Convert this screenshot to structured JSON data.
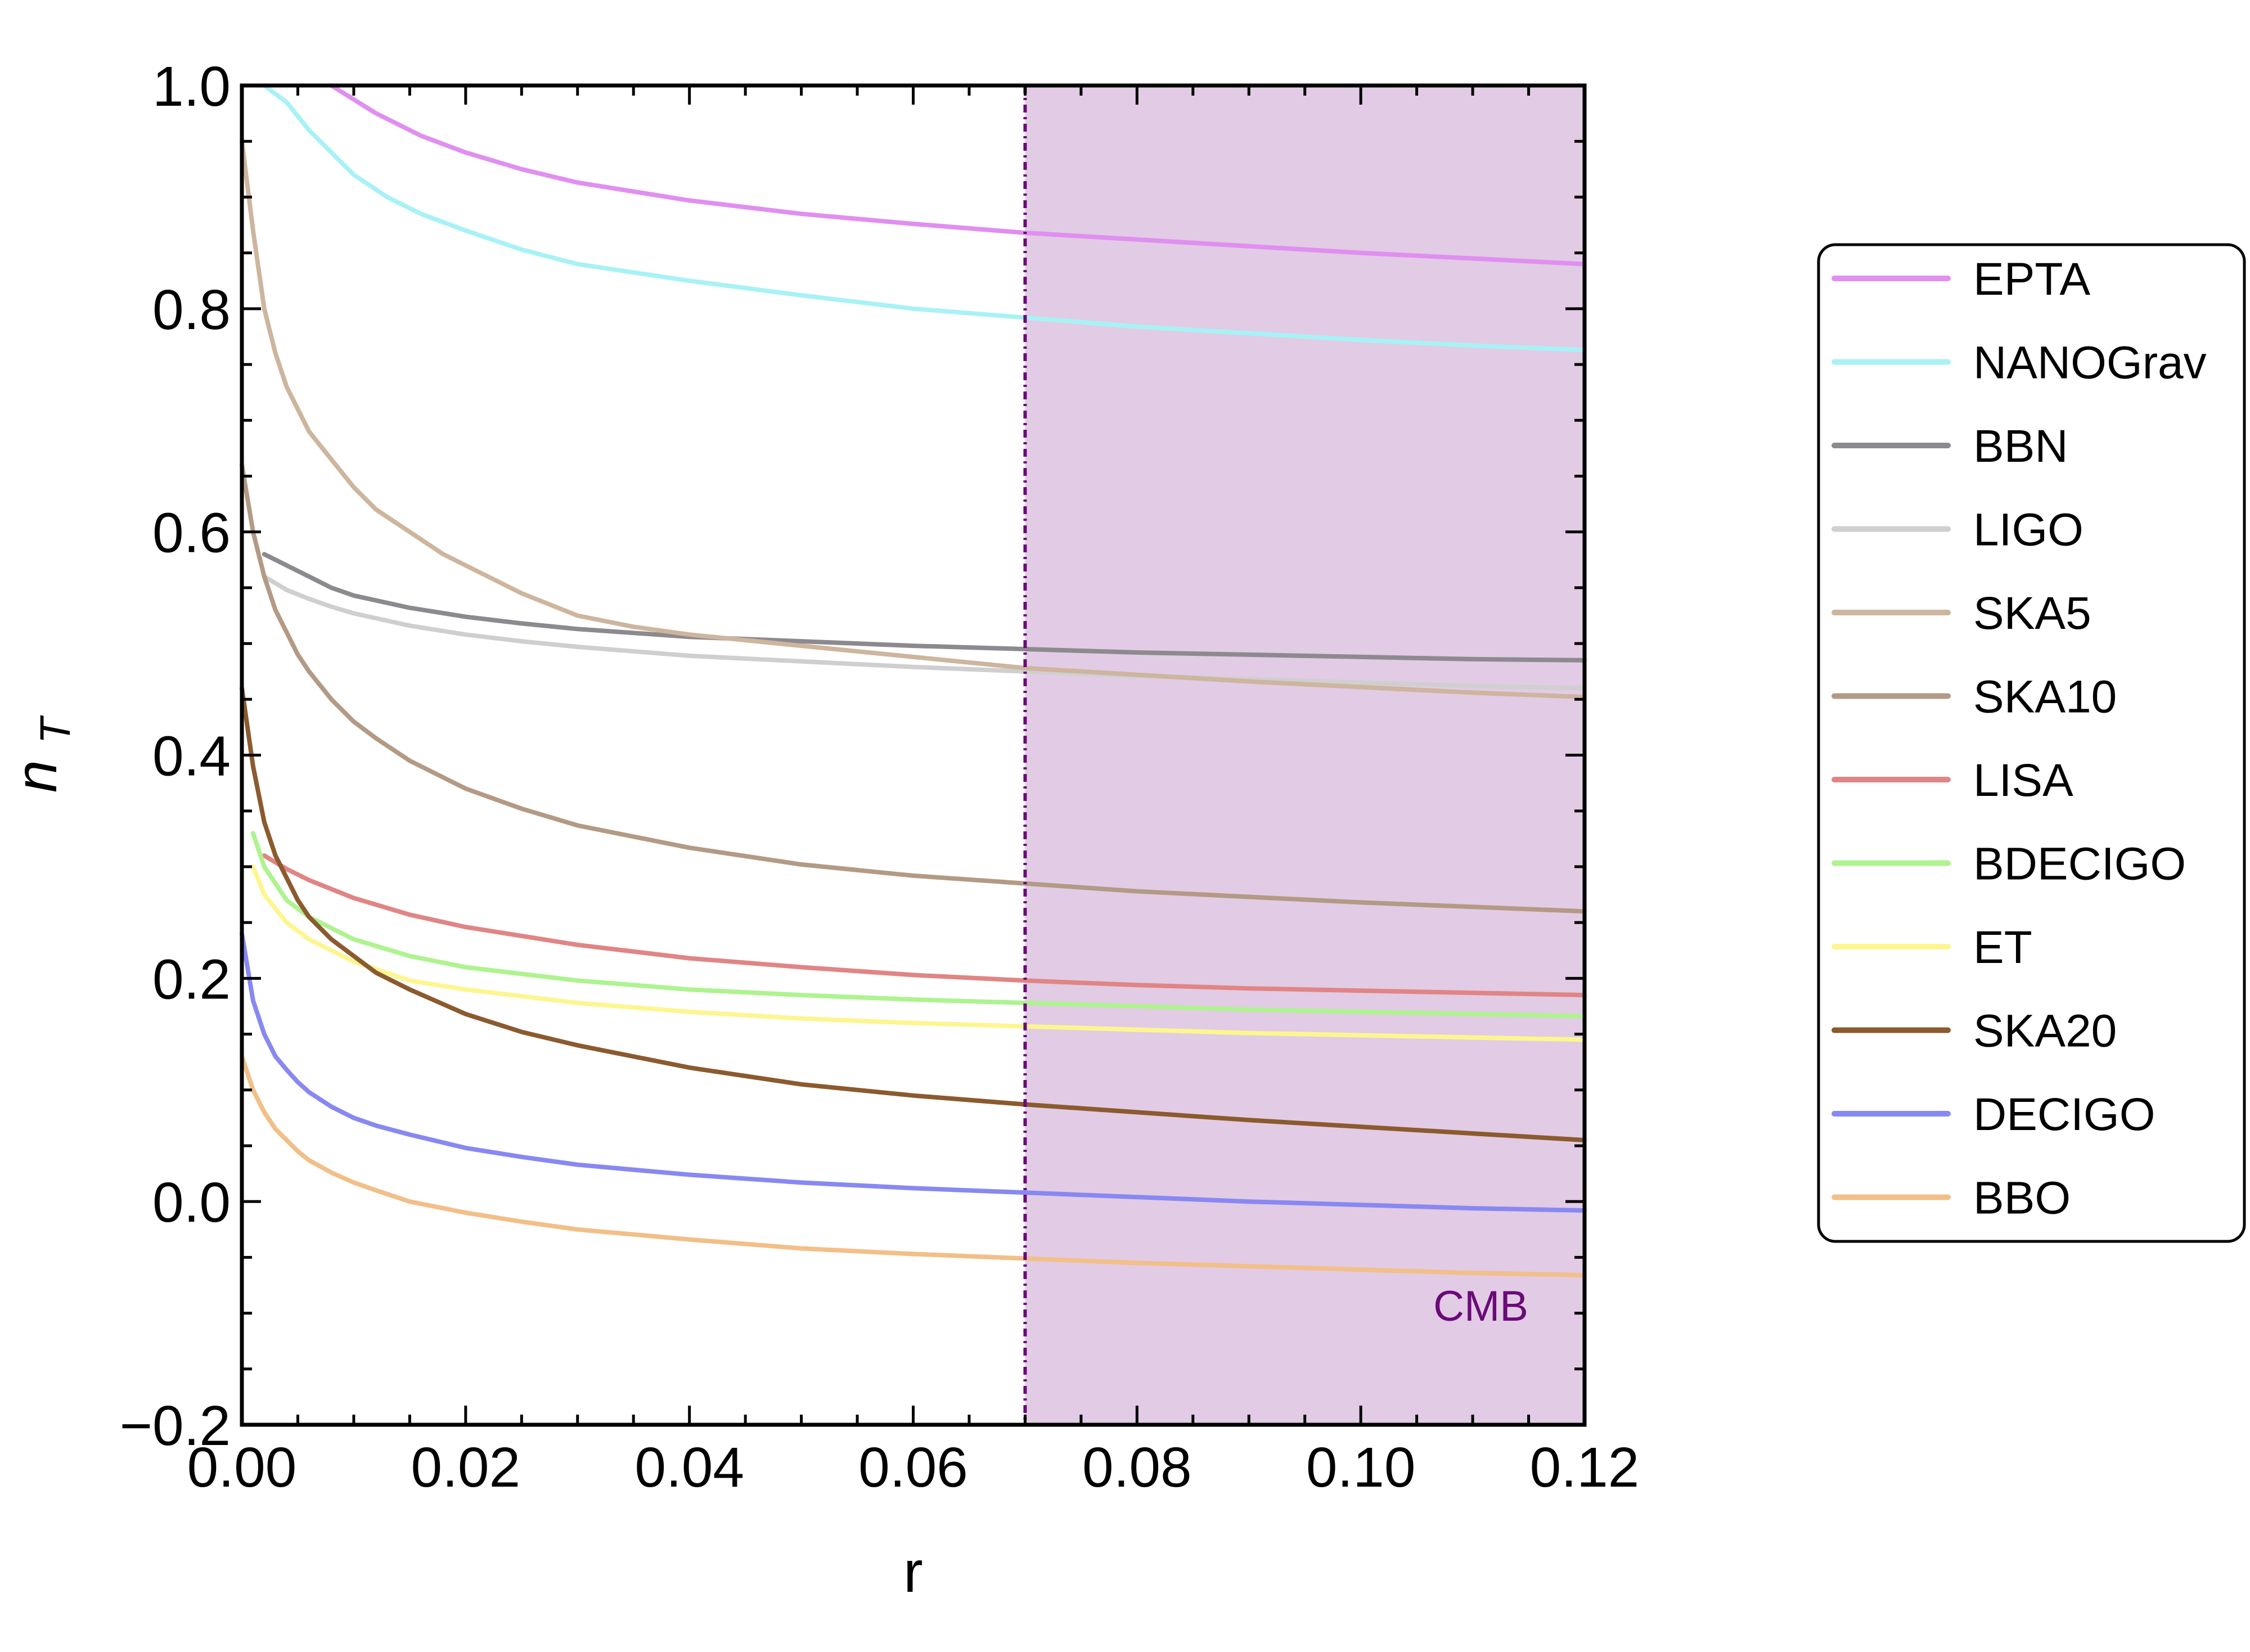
{
  "chart_data": {
    "type": "line",
    "title": "",
    "xlabel": "r",
    "ylabel": "n",
    "ylabel_sub": "T",
    "xlim": [
      0.0,
      0.12
    ],
    "ylim": [
      -0.2,
      1.0
    ],
    "xticks": [
      0.0,
      0.02,
      0.04,
      0.06,
      0.08,
      0.1,
      0.12
    ],
    "xtick_labels": [
      "0.00",
      "0.02",
      "0.04",
      "0.06",
      "0.08",
      "0.10",
      "0.12"
    ],
    "yticks": [
      -0.2,
      0.0,
      0.2,
      0.4,
      0.6,
      0.8,
      1.0
    ],
    "ytick_labels": [
      "−0.2",
      "0.0",
      "0.2",
      "0.4",
      "0.6",
      "0.8",
      "1.0"
    ],
    "grid": false,
    "legend_position": "right",
    "shaded_region": {
      "label": "CMB",
      "x_start": 0.07,
      "x_end": 0.12,
      "color": "#e2cbe4",
      "boundary_color": "#6a0a78",
      "label_color": "#6a0a78"
    },
    "series": [
      {
        "name": "EPTA",
        "color": "#e08ff0",
        "x": [
          0.008,
          0.012,
          0.016,
          0.02,
          0.025,
          0.03,
          0.04,
          0.05,
          0.06,
          0.07,
          0.08,
          0.09,
          0.1,
          0.11,
          0.12
        ],
        "y": [
          1.0,
          0.975,
          0.955,
          0.94,
          0.925,
          0.913,
          0.897,
          0.885,
          0.876,
          0.868,
          0.862,
          0.856,
          0.85,
          0.845,
          0.84
        ]
      },
      {
        "name": "NANOGrav",
        "color": "#a8f2f6",
        "x": [
          0.002,
          0.004,
          0.006,
          0.008,
          0.01,
          0.013,
          0.016,
          0.02,
          0.025,
          0.03,
          0.04,
          0.05,
          0.06,
          0.07,
          0.08,
          0.09,
          0.1,
          0.11,
          0.12
        ],
        "y": [
          1.0,
          0.985,
          0.96,
          0.94,
          0.92,
          0.9,
          0.885,
          0.87,
          0.853,
          0.84,
          0.825,
          0.812,
          0.8,
          0.792,
          0.784,
          0.778,
          0.772,
          0.767,
          0.763
        ]
      },
      {
        "name": "BBN",
        "color": "#8c8a8e",
        "x": [
          0.002,
          0.004,
          0.006,
          0.008,
          0.01,
          0.015,
          0.02,
          0.025,
          0.03,
          0.04,
          0.05,
          0.06,
          0.07,
          0.08,
          0.09,
          0.1,
          0.11,
          0.12
        ],
        "y": [
          0.58,
          0.57,
          0.56,
          0.55,
          0.543,
          0.532,
          0.524,
          0.518,
          0.513,
          0.506,
          0.502,
          0.498,
          0.495,
          0.492,
          0.49,
          0.488,
          0.486,
          0.485
        ]
      },
      {
        "name": "LIGO",
        "color": "#cfcfcf",
        "x": [
          0.002,
          0.004,
          0.006,
          0.008,
          0.01,
          0.015,
          0.02,
          0.025,
          0.03,
          0.04,
          0.05,
          0.06,
          0.07,
          0.08,
          0.09,
          0.1,
          0.11,
          0.12
        ],
        "y": [
          0.56,
          0.548,
          0.54,
          0.533,
          0.527,
          0.516,
          0.508,
          0.502,
          0.497,
          0.489,
          0.484,
          0.479,
          0.475,
          0.471,
          0.468,
          0.465,
          0.462,
          0.46
        ]
      },
      {
        "name": "SKA5",
        "color": "#cdb59e",
        "x": [
          0.0,
          0.001,
          0.002,
          0.003,
          0.004,
          0.005,
          0.006,
          0.008,
          0.01,
          0.012,
          0.015,
          0.018,
          0.02,
          0.025,
          0.03,
          0.035,
          0.04,
          0.05,
          0.06,
          0.07,
          0.08,
          0.09,
          0.1,
          0.11,
          0.12
        ],
        "y": [
          0.95,
          0.87,
          0.8,
          0.76,
          0.73,
          0.71,
          0.69,
          0.665,
          0.64,
          0.62,
          0.6,
          0.58,
          0.57,
          0.545,
          0.525,
          0.515,
          0.508,
          0.498,
          0.488,
          0.478,
          0.472,
          0.466,
          0.461,
          0.456,
          0.452
        ]
      },
      {
        "name": "SKA10",
        "color": "#b39a85",
        "x": [
          0.0,
          0.001,
          0.002,
          0.003,
          0.004,
          0.005,
          0.006,
          0.008,
          0.01,
          0.012,
          0.015,
          0.02,
          0.025,
          0.03,
          0.04,
          0.05,
          0.06,
          0.07,
          0.08,
          0.09,
          0.1,
          0.11,
          0.12
        ],
        "y": [
          0.66,
          0.6,
          0.56,
          0.53,
          0.51,
          0.49,
          0.475,
          0.45,
          0.43,
          0.415,
          0.395,
          0.37,
          0.352,
          0.337,
          0.317,
          0.302,
          0.292,
          0.285,
          0.278,
          0.273,
          0.268,
          0.264,
          0.26
        ]
      },
      {
        "name": "LISA",
        "color": "#e08585",
        "x": [
          0.002,
          0.004,
          0.006,
          0.008,
          0.01,
          0.015,
          0.02,
          0.03,
          0.04,
          0.05,
          0.06,
          0.07,
          0.08,
          0.09,
          0.1,
          0.11,
          0.12
        ],
        "y": [
          0.31,
          0.298,
          0.288,
          0.28,
          0.272,
          0.257,
          0.246,
          0.23,
          0.218,
          0.21,
          0.203,
          0.198,
          0.194,
          0.191,
          0.189,
          0.187,
          0.185
        ]
      },
      {
        "name": "BDECIGO",
        "color": "#aef38f",
        "x": [
          0.001,
          0.002,
          0.004,
          0.006,
          0.008,
          0.01,
          0.015,
          0.02,
          0.03,
          0.04,
          0.05,
          0.06,
          0.07,
          0.08,
          0.09,
          0.1,
          0.11,
          0.12
        ],
        "y": [
          0.33,
          0.3,
          0.27,
          0.255,
          0.245,
          0.235,
          0.22,
          0.21,
          0.198,
          0.19,
          0.185,
          0.181,
          0.178,
          0.175,
          0.172,
          0.17,
          0.168,
          0.166
        ]
      },
      {
        "name": "ET",
        "color": "#fdf690",
        "x": [
          0.001,
          0.002,
          0.004,
          0.006,
          0.008,
          0.01,
          0.015,
          0.02,
          0.03,
          0.04,
          0.05,
          0.06,
          0.07,
          0.08,
          0.09,
          0.1,
          0.11,
          0.12
        ],
        "y": [
          0.3,
          0.275,
          0.25,
          0.235,
          0.225,
          0.215,
          0.198,
          0.19,
          0.178,
          0.17,
          0.164,
          0.16,
          0.157,
          0.154,
          0.151,
          0.149,
          0.147,
          0.145
        ]
      },
      {
        "name": "SKA20",
        "color": "#8b5a2e",
        "x": [
          0.0,
          0.001,
          0.002,
          0.003,
          0.004,
          0.005,
          0.006,
          0.008,
          0.01,
          0.012,
          0.015,
          0.02,
          0.025,
          0.03,
          0.04,
          0.05,
          0.06,
          0.07,
          0.08,
          0.09,
          0.1,
          0.11,
          0.12
        ],
        "y": [
          0.46,
          0.39,
          0.34,
          0.31,
          0.29,
          0.27,
          0.255,
          0.235,
          0.22,
          0.205,
          0.19,
          0.168,
          0.152,
          0.14,
          0.12,
          0.105,
          0.095,
          0.087,
          0.08,
          0.073,
          0.067,
          0.061,
          0.055
        ]
      },
      {
        "name": "DECIGO",
        "color": "#8888f2",
        "x": [
          0.0,
          0.001,
          0.002,
          0.003,
          0.004,
          0.005,
          0.006,
          0.008,
          0.01,
          0.012,
          0.015,
          0.02,
          0.025,
          0.03,
          0.04,
          0.05,
          0.06,
          0.07,
          0.08,
          0.09,
          0.1,
          0.11,
          0.12
        ],
        "y": [
          0.24,
          0.18,
          0.15,
          0.13,
          0.118,
          0.107,
          0.098,
          0.085,
          0.075,
          0.068,
          0.06,
          0.048,
          0.04,
          0.033,
          0.024,
          0.017,
          0.012,
          0.008,
          0.004,
          0.0,
          -0.003,
          -0.006,
          -0.008
        ]
      },
      {
        "name": "BBO",
        "color": "#f2bf88",
        "x": [
          0.0,
          0.001,
          0.002,
          0.003,
          0.004,
          0.005,
          0.006,
          0.008,
          0.01,
          0.012,
          0.015,
          0.02,
          0.025,
          0.03,
          0.04,
          0.05,
          0.06,
          0.07,
          0.08,
          0.09,
          0.1,
          0.11,
          0.12
        ],
        "y": [
          0.13,
          0.1,
          0.08,
          0.065,
          0.055,
          0.045,
          0.037,
          0.026,
          0.017,
          0.01,
          0.0,
          -0.01,
          -0.018,
          -0.025,
          -0.034,
          -0.042,
          -0.047,
          -0.051,
          -0.055,
          -0.058,
          -0.061,
          -0.064,
          -0.066
        ]
      }
    ]
  }
}
